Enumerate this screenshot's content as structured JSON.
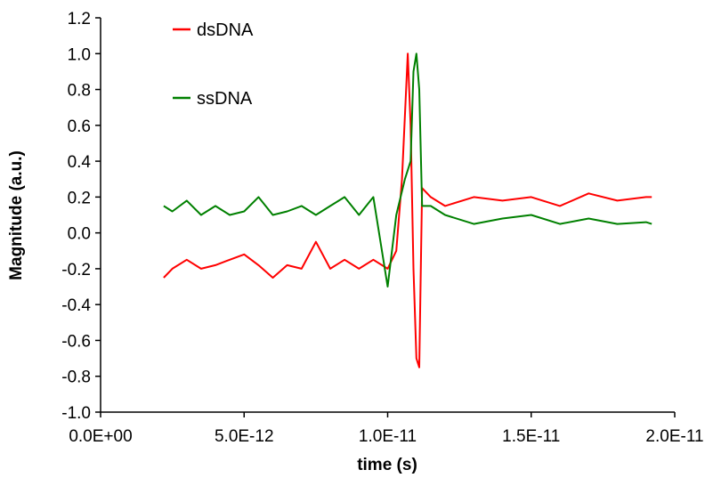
{
  "chart_data": {
    "type": "line",
    "xlabel": "time (s)",
    "ylabel": "Magnitude (a.u.)",
    "xlim": [
      0,
      2e-11
    ],
    "ylim": [
      -1.0,
      1.2
    ],
    "x_ticks": [
      0,
      5e-12,
      1e-11,
      1.5e-11,
      2e-11
    ],
    "x_tick_labels": [
      "0.0E+00",
      "5.0E-12",
      "1.0E-11",
      "1.5E-11",
      "2.0E-11"
    ],
    "y_ticks": [
      -1.0,
      -0.8,
      -0.6,
      -0.4,
      -0.2,
      0.0,
      0.2,
      0.4,
      0.6,
      0.8,
      1.0,
      1.2
    ],
    "y_tick_labels": [
      "-1.0",
      "-0.8",
      "-0.6",
      "-0.4",
      "-0.2",
      "0.0",
      "0.2",
      "0.4",
      "0.6",
      "0.8",
      "1.0",
      "1.2"
    ],
    "grid": false,
    "legend_position": "top-left",
    "series": [
      {
        "name": "dsDNA",
        "color": "#ff0000",
        "x": [
          2.2e-12,
          2.5e-12,
          3e-12,
          3.5e-12,
          4e-12,
          4.5e-12,
          5e-12,
          5.5e-12,
          6e-12,
          6.5e-12,
          7e-12,
          7.5e-12,
          8e-12,
          8.5e-12,
          9e-12,
          9.5e-12,
          1e-11,
          1.03e-11,
          1.05e-11,
          1.07e-11,
          1.08e-11,
          1.09e-11,
          1.1e-11,
          1.11e-11,
          1.12e-11,
          1.15e-11,
          1.2e-11,
          1.3e-11,
          1.4e-11,
          1.5e-11,
          1.6e-11,
          1.7e-11,
          1.8e-11,
          1.9e-11,
          1.92e-11
        ],
        "y": [
          -0.25,
          -0.2,
          -0.15,
          -0.2,
          -0.18,
          -0.15,
          -0.12,
          -0.18,
          -0.25,
          -0.18,
          -0.2,
          -0.05,
          -0.2,
          -0.15,
          -0.2,
          -0.15,
          -0.2,
          -0.1,
          0.3,
          1.0,
          0.6,
          -0.2,
          -0.7,
          -0.75,
          0.25,
          0.2,
          0.15,
          0.2,
          0.18,
          0.2,
          0.15,
          0.22,
          0.18,
          0.2,
          0.2
        ]
      },
      {
        "name": "ssDNA",
        "color": "#008000",
        "x": [
          2.2e-12,
          2.5e-12,
          3e-12,
          3.5e-12,
          4e-12,
          4.5e-12,
          5e-12,
          5.5e-12,
          6e-12,
          6.5e-12,
          7e-12,
          7.5e-12,
          8e-12,
          8.5e-12,
          9e-12,
          9.5e-12,
          1e-11,
          1.03e-11,
          1.06e-11,
          1.08e-11,
          1.09e-11,
          1.1e-11,
          1.11e-11,
          1.12e-11,
          1.15e-11,
          1.2e-11,
          1.3e-11,
          1.4e-11,
          1.5e-11,
          1.6e-11,
          1.7e-11,
          1.8e-11,
          1.9e-11,
          1.92e-11
        ],
        "y": [
          0.15,
          0.12,
          0.18,
          0.1,
          0.15,
          0.1,
          0.12,
          0.2,
          0.1,
          0.12,
          0.15,
          0.1,
          0.15,
          0.2,
          0.1,
          0.2,
          -0.3,
          0.1,
          0.3,
          0.4,
          0.9,
          1.0,
          0.8,
          0.15,
          0.15,
          0.1,
          0.05,
          0.08,
          0.1,
          0.05,
          0.08,
          0.05,
          0.06,
          0.05
        ]
      }
    ]
  }
}
